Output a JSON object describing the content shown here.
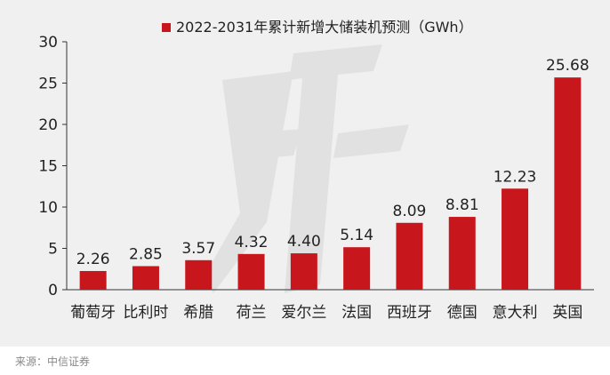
{
  "chart_data": {
    "type": "bar",
    "legend": {
      "label": "2022-2031年累计新增大储装机预测（GWh）",
      "placement": "top"
    },
    "categories": [
      "葡萄牙",
      "比利时",
      "希腊",
      "荷兰",
      "爱尔兰",
      "法国",
      "西班牙",
      "德国",
      "意大利",
      "英国"
    ],
    "series": [
      {
        "values": [
          2.26,
          2.85,
          3.57,
          4.32,
          4.4,
          5.14,
          8.09,
          8.81,
          12.23,
          25.68
        ]
      }
    ],
    "value_labels": [
      "2.26",
      "2.85",
      "3.57",
      "4.32",
      "4.40",
      "5.14",
      "8.09",
      "8.81",
      "12.23",
      "25.68"
    ],
    "ylim": [
      0,
      30
    ],
    "yticks": [
      0,
      5,
      10,
      15,
      20,
      25,
      30
    ],
    "grid": false,
    "bar_color": "#c8161d"
  },
  "source": "来源：中信证券"
}
